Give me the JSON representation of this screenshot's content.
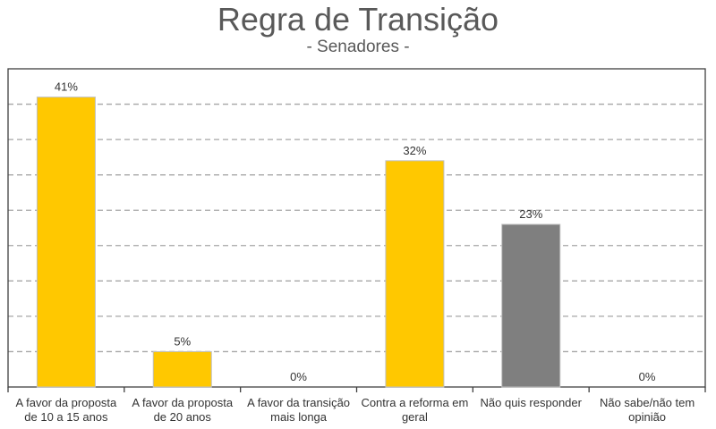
{
  "chart_data": {
    "type": "bar",
    "title": "Regra de Transição",
    "subtitle": "- Senadores -",
    "categories": [
      [
        "A favor da proposta",
        "de 10 a 15 anos"
      ],
      [
        "A favor da proposta",
        "de 20 anos"
      ],
      [
        "A favor da transição",
        "mais longa"
      ],
      [
        "Contra a reforma em",
        "geral"
      ],
      [
        "Não quis responder"
      ],
      [
        "Não sabe/não tem",
        "opinião"
      ]
    ],
    "values": [
      41,
      5,
      0,
      32,
      23,
      0
    ],
    "labels": [
      "41%",
      "5%",
      "0%",
      "32%",
      "23%",
      "0%"
    ],
    "colors": [
      "#FFC800",
      "#FFC800",
      "#FFC800",
      "#FFC800",
      "#7F7F7F",
      "#FFC800"
    ],
    "ylim": [
      0,
      45
    ],
    "ystep": 5,
    "grid": true,
    "xlabel": "",
    "ylabel": ""
  }
}
